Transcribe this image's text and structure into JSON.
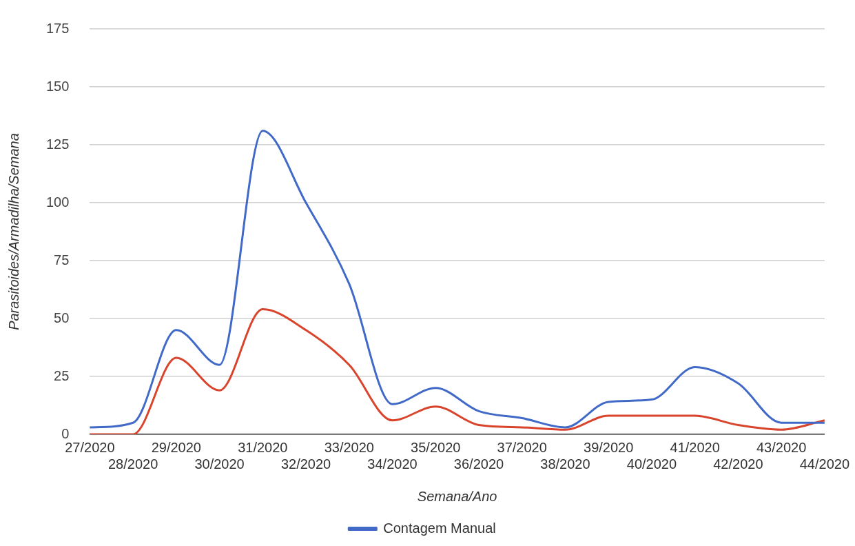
{
  "chart_data": {
    "type": "line",
    "xlabel": "Semana/Ano",
    "ylabel": "Parasitoides/Armadilha/Semana",
    "categories": [
      "27/2020",
      "28/2020",
      "29/2020",
      "30/2020",
      "31/2020",
      "32/2020",
      "33/2020",
      "34/2020",
      "35/2020",
      "36/2020",
      "37/2020",
      "38/2020",
      "39/2020",
      "40/2020",
      "41/2020",
      "42/2020",
      "43/2020",
      "44/2020"
    ],
    "series": [
      {
        "name": "Contagem Manual",
        "color": "#4169c8",
        "values": [
          3,
          5,
          45,
          30,
          131,
          100,
          65,
          13,
          20,
          10,
          7,
          3,
          14,
          15,
          29,
          22,
          5,
          5
        ]
      },
      {
        "color": "#d8442c",
        "values": [
          0,
          0,
          33,
          19,
          54,
          45,
          30,
          6,
          12,
          4,
          3,
          2,
          8,
          8,
          8,
          4,
          2,
          6
        ]
      }
    ],
    "ylim": [
      0,
      175
    ],
    "yticks": [
      0,
      25,
      50,
      75,
      100,
      125,
      150,
      175
    ],
    "grid": "y",
    "legend": "bottom",
    "marker": "none",
    "line_style": "solid"
  }
}
